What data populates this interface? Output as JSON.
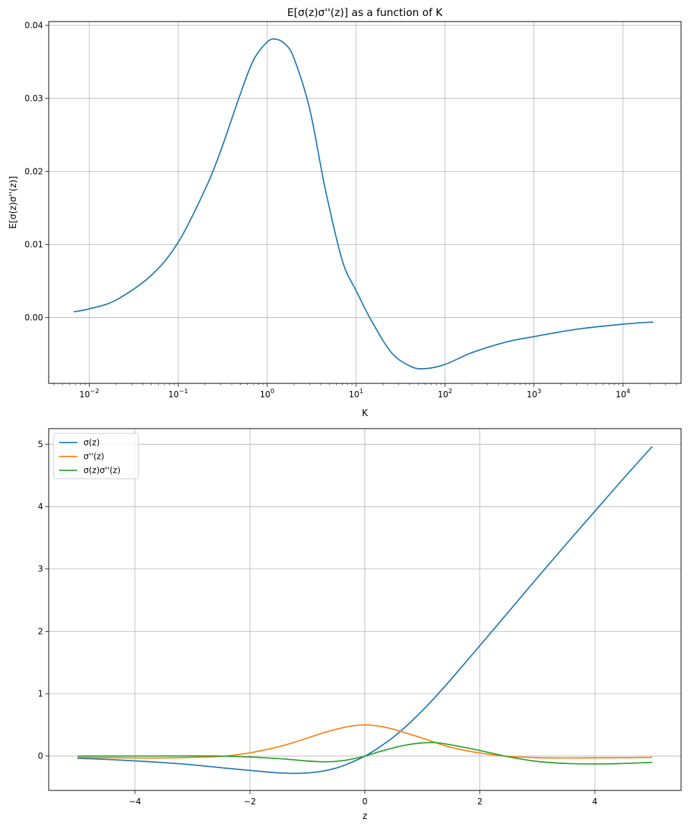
{
  "chart_data": [
    {
      "type": "line",
      "title": "E[σ(z)σ''(z)] as a function of K",
      "xlabel": "K",
      "ylabel": "E[σ(z)σ''(z)]",
      "xscale": "log",
      "xlim": [
        0.0035,
        45000
      ],
      "ylim": [
        -0.009,
        0.0405
      ],
      "grid": true,
      "xticks": [
        {
          "value": 0.01,
          "base": "10",
          "exp": "−2"
        },
        {
          "value": 0.1,
          "base": "10",
          "exp": "−1"
        },
        {
          "value": 1,
          "base": "10",
          "exp": "0"
        },
        {
          "value": 10,
          "base": "10",
          "exp": "1"
        },
        {
          "value": 100,
          "base": "10",
          "exp": "2"
        },
        {
          "value": 1000,
          "base": "10",
          "exp": "3"
        },
        {
          "value": 10000,
          "base": "10",
          "exp": "4"
        }
      ],
      "yticks": [
        {
          "value": 0.0,
          "label": "0.00"
        },
        {
          "value": 0.01,
          "label": "0.01"
        },
        {
          "value": 0.02,
          "label": "0.02"
        },
        {
          "value": 0.03,
          "label": "0.03"
        },
        {
          "value": 0.04,
          "label": "0.04"
        }
      ],
      "series": [
        {
          "color": "#1f77b4",
          "x": [
            0.0067,
            0.01,
            0.02,
            0.05,
            0.1,
            0.2,
            0.3,
            0.5,
            0.7,
            1.0,
            1.25,
            1.6,
            2.0,
            3.0,
            4.5,
            7.0,
            10,
            15,
            25,
            40,
            57,
            100,
            200,
            500,
            1000,
            3000,
            10000,
            22000
          ],
          "y": [
            0.0008,
            0.0012,
            0.0024,
            0.0058,
            0.0103,
            0.0175,
            0.0228,
            0.0306,
            0.0352,
            0.0377,
            0.0381,
            0.0374,
            0.0355,
            0.0286,
            0.0176,
            0.0078,
            0.0037,
            -0.0005,
            -0.0048,
            -0.0066,
            -0.007,
            -0.0064,
            -0.0048,
            -0.0033,
            -0.0026,
            -0.0016,
            -0.0009,
            -0.0006
          ]
        }
      ]
    },
    {
      "type": "line",
      "title": "",
      "xlabel": "z",
      "ylabel": "",
      "xlim": [
        -5.5,
        5.5
      ],
      "ylim": [
        -0.55,
        5.25
      ],
      "grid": true,
      "legend_position": "top-left",
      "xticks": [
        {
          "value": -4,
          "label": "−4"
        },
        {
          "value": -2,
          "label": "−2"
        },
        {
          "value": 0,
          "label": "0"
        },
        {
          "value": 2,
          "label": "2"
        },
        {
          "value": 4,
          "label": "4"
        }
      ],
      "yticks": [
        {
          "value": 0,
          "label": "0"
        },
        {
          "value": 1,
          "label": "1"
        },
        {
          "value": 2,
          "label": "2"
        },
        {
          "value": 3,
          "label": "3"
        },
        {
          "value": 4,
          "label": "4"
        },
        {
          "value": 5,
          "label": "5"
        }
      ],
      "series": [
        {
          "name": "σ(z)",
          "color": "#1f77b4",
          "x": [
            -5,
            -4.5,
            -4,
            -3.5,
            -3,
            -2.5,
            -2,
            -1.75,
            -1.5,
            -1.25,
            -1,
            -0.75,
            -0.5,
            -0.25,
            0,
            0.25,
            0.5,
            0.75,
            1,
            1.25,
            1.5,
            2,
            2.5,
            3,
            3.5,
            4,
            4.5,
            5
          ],
          "y": [
            -0.035,
            -0.052,
            -0.076,
            -0.104,
            -0.14,
            -0.186,
            -0.229,
            -0.25,
            -0.268,
            -0.276,
            -0.27,
            -0.243,
            -0.192,
            -0.107,
            0,
            0.142,
            0.308,
            0.506,
            0.73,
            0.973,
            1.232,
            1.771,
            2.314,
            2.86,
            3.396,
            3.924,
            4.452,
            4.965
          ]
        },
        {
          "name": "σ''(z)",
          "color": "#ff7f0e",
          "x": [
            -5,
            -4.5,
            -4,
            -3.5,
            -3,
            -2.5,
            -2,
            -1.5,
            -1.25,
            -1,
            -0.75,
            -0.5,
            -0.25,
            0,
            0.25,
            0.5,
            0.75,
            1,
            1.25,
            1.5,
            2,
            2.5,
            3,
            3.5,
            4,
            4.5,
            5
          ],
          "y": [
            -0.022,
            -0.026,
            -0.03,
            -0.03,
            -0.02,
            -0.005,
            0.052,
            0.15,
            0.215,
            0.29,
            0.365,
            0.43,
            0.48,
            0.5,
            0.48,
            0.43,
            0.36,
            0.29,
            0.21,
            0.14,
            0.05,
            -0.005,
            -0.025,
            -0.03,
            -0.028,
            -0.025,
            -0.02
          ]
        },
        {
          "name": "σ(z)σ''(z)",
          "color": "#2ca02c",
          "x": [
            -5,
            -4,
            -3,
            -2.5,
            -2,
            -1.5,
            -1,
            -0.75,
            -0.5,
            -0.25,
            0,
            0.25,
            0.5,
            0.75,
            1,
            1.25,
            1.5,
            2,
            2.5,
            3,
            3.5,
            4,
            4.5,
            5
          ],
          "y": [
            0.001,
            0.002,
            0.003,
            0.001,
            -0.015,
            -0.04,
            -0.078,
            -0.09,
            -0.084,
            -0.052,
            0,
            0.07,
            0.133,
            0.183,
            0.212,
            0.215,
            0.18,
            0.09,
            -0.012,
            -0.085,
            -0.118,
            -0.125,
            -0.118,
            -0.1
          ]
        }
      ]
    }
  ]
}
